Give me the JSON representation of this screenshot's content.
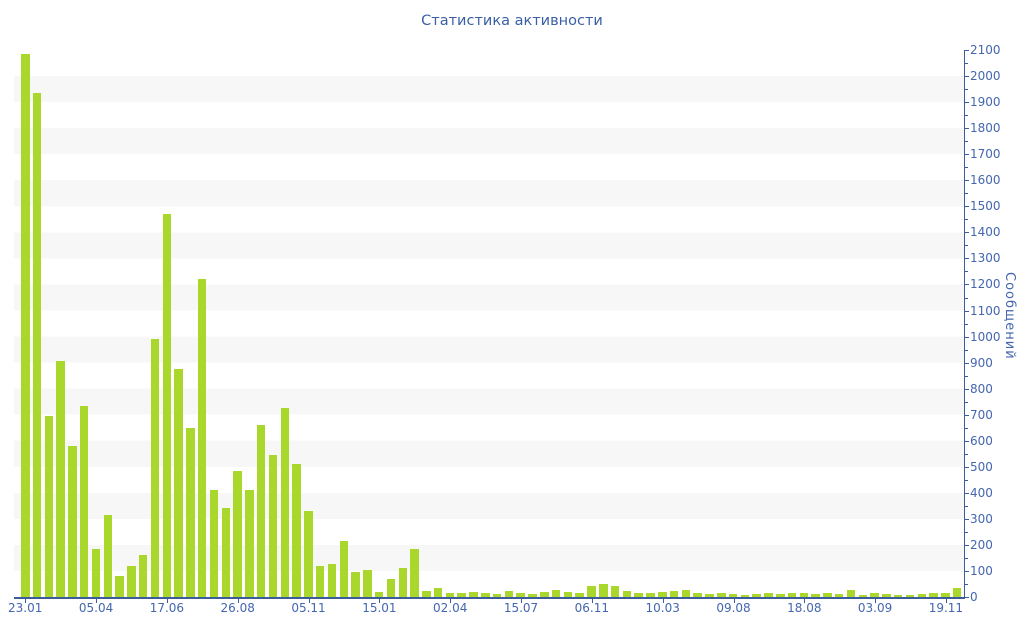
{
  "title": "Статистика активности",
  "chart_data": {
    "type": "bar",
    "title": "Статистика активности",
    "ylabel": "Сообщений",
    "xlabel": "",
    "ylim": [
      0,
      2100
    ],
    "y_ticks": [
      0,
      100,
      200,
      300,
      400,
      500,
      600,
      700,
      800,
      900,
      1000,
      1100,
      1200,
      1300,
      1400,
      1500,
      1600,
      1700,
      1800,
      1900,
      2000,
      2100
    ],
    "y_minor_tick_step": 50,
    "x_tick_labels": [
      "23.01",
      "05.04",
      "17.06",
      "26.08",
      "05.11",
      "15.01",
      "02.04",
      "15.07",
      "06.11",
      "10.03",
      "09.08",
      "18.08",
      "03.09",
      "19.11"
    ],
    "x_label_every_n_bars": 6,
    "bar_count": 80,
    "values": [
      2085,
      1935,
      695,
      905,
      580,
      735,
      185,
      315,
      80,
      120,
      160,
      990,
      1470,
      875,
      650,
      1220,
      410,
      340,
      485,
      410,
      660,
      545,
      725,
      510,
      330,
      120,
      125,
      215,
      95,
      105,
      20,
      70,
      110,
      185,
      25,
      35,
      15,
      15,
      20,
      17,
      10,
      25,
      15,
      10,
      20,
      28,
      20,
      15,
      43,
      49,
      43,
      23,
      15,
      15,
      20,
      25,
      28,
      17,
      13,
      17,
      10,
      6,
      10,
      14,
      13,
      17,
      16,
      13,
      17,
      13,
      28,
      9,
      17,
      12,
      9,
      9,
      12,
      16,
      16,
      35
    ],
    "grid": "alternating horizontal bands",
    "legend": "none",
    "axes_position": {
      "y_axis": "right",
      "x_axis": "bottom"
    },
    "colors": {
      "bar": "#a9d72c",
      "band": "#f7f7f7",
      "background": "#ffffff",
      "axis_line": "#3c5c9e",
      "tick_text": "#4466b0",
      "title_text": "#3a5fa6"
    }
  }
}
